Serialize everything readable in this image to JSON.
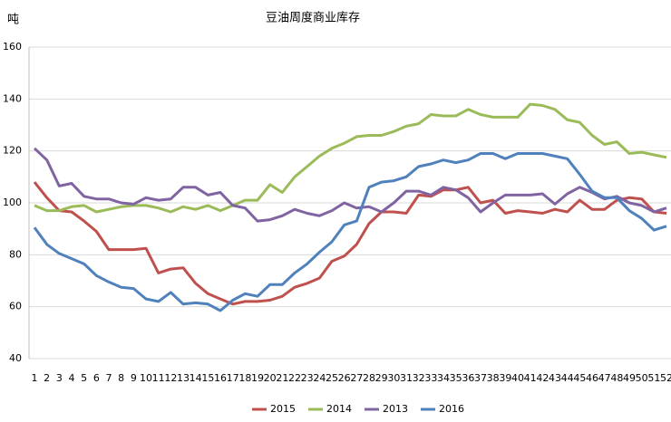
{
  "chart_data": {
    "type": "line",
    "title": "豆油周度商业库存",
    "y_label": "吨",
    "x": [
      1,
      2,
      3,
      4,
      5,
      6,
      7,
      8,
      9,
      10,
      11,
      12,
      13,
      14,
      15,
      16,
      17,
      18,
      19,
      20,
      21,
      22,
      23,
      24,
      25,
      26,
      27,
      28,
      29,
      30,
      31,
      32,
      33,
      34,
      35,
      36,
      37,
      38,
      39,
      40,
      41,
      42,
      43,
      44,
      45,
      46,
      47,
      48,
      49,
      50,
      51,
      52
    ],
    "xlim": [
      1,
      52
    ],
    "ylim": [
      40,
      160
    ],
    "yticks": [
      40,
      60,
      80,
      100,
      120,
      140,
      160
    ],
    "grid": true,
    "series": [
      {
        "name": "2015",
        "color": "#c0504d",
        "values": [
          108,
          102,
          97,
          96.5,
          93,
          89,
          82,
          82,
          82,
          82.5,
          73,
          74.5,
          75,
          69,
          65,
          63,
          61,
          62,
          62,
          62.5,
          64,
          67.5,
          69,
          71,
          77.5,
          79.5,
          84,
          92,
          96.5,
          96.5,
          96,
          103,
          102.5,
          105,
          105,
          106,
          100,
          101,
          96,
          97,
          96.5,
          96,
          97.5,
          96.5,
          101,
          97.5,
          97.5,
          101,
          102,
          101.5,
          96.5,
          96
        ]
      },
      {
        "name": "2014",
        "color": "#9bbb59",
        "values": [
          99,
          97,
          97,
          98.5,
          99,
          96.5,
          97.5,
          98.5,
          99,
          99,
          98,
          96.5,
          98.5,
          97.5,
          99,
          97,
          99,
          101,
          101,
          107,
          104,
          110,
          114,
          118,
          121,
          123,
          125.5,
          126,
          126,
          127.5,
          129.5,
          130.5,
          134,
          133.5,
          133.5,
          136,
          134,
          133,
          133,
          133,
          138,
          137.5,
          136,
          132,
          131,
          126,
          122.5,
          123.5,
          119,
          119.5,
          118.5,
          117.5
        ]
      },
      {
        "name": "2013",
        "color": "#8064a2",
        "values": [
          121,
          116.5,
          106.5,
          107.5,
          102.5,
          101.5,
          101.5,
          100,
          99.5,
          102,
          101,
          101.5,
          106,
          106,
          103,
          104,
          99,
          98,
          93,
          93.5,
          95,
          97.5,
          96,
          95,
          97,
          100,
          98,
          98.5,
          96.5,
          100,
          104.5,
          104.5,
          103,
          106,
          105,
          102,
          96.5,
          100,
          103,
          103,
          103,
          103.5,
          99.5,
          103.5,
          106,
          104,
          101.5,
          102.5,
          100,
          99,
          96.5,
          98
        ]
      },
      {
        "name": "2016",
        "color": "#4f81bd",
        "values": [
          90.5,
          84,
          80.5,
          78.5,
          76.5,
          72,
          69.5,
          67.5,
          67,
          63,
          62,
          65.5,
          61,
          61.5,
          61,
          58.5,
          62.5,
          65,
          64,
          68.5,
          68.5,
          73,
          76.5,
          81,
          85,
          91.5,
          93,
          106,
          108,
          108.5,
          110,
          114,
          115,
          116.5,
          115.5,
          116.5,
          119,
          119,
          117,
          119,
          119,
          119,
          118,
          117,
          111,
          104.5,
          102,
          102,
          97,
          94,
          89.5,
          91
        ]
      }
    ]
  }
}
